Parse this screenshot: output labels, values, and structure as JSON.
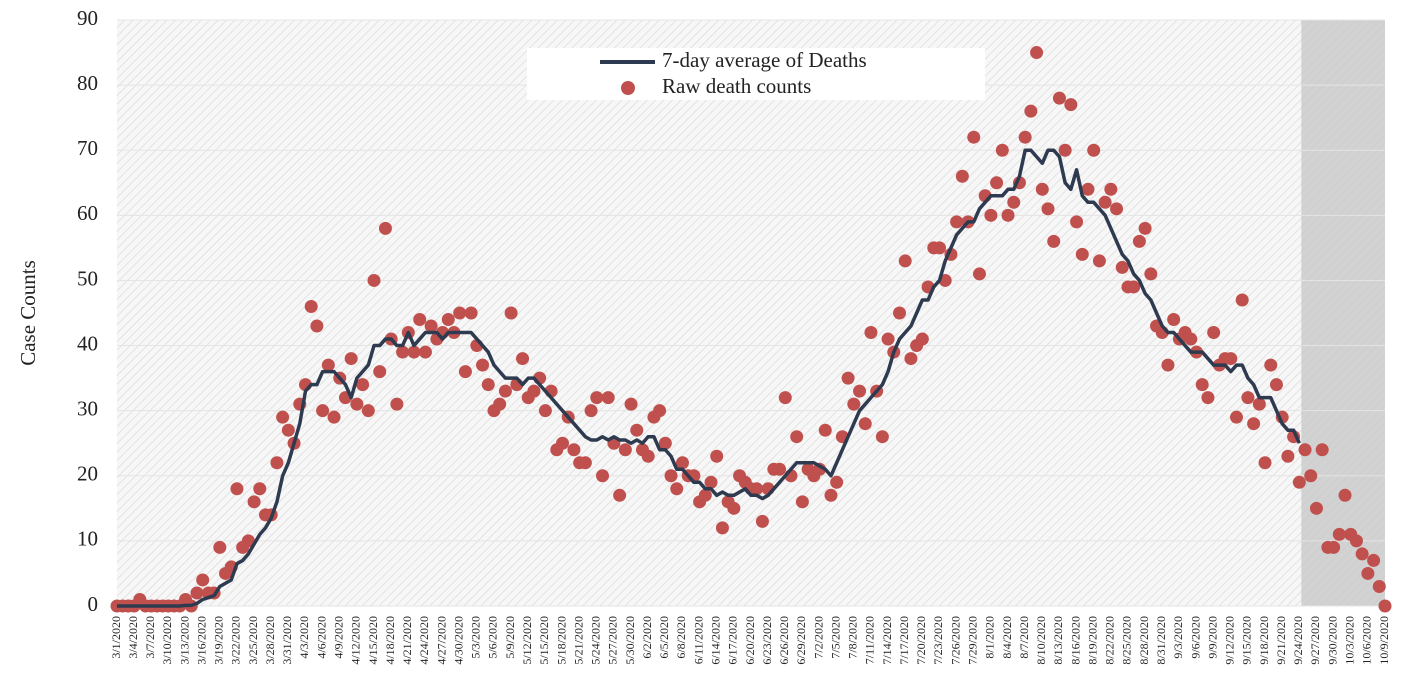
{
  "chart_data": {
    "type": "line",
    "ylabel": "Case Counts",
    "ylim": [
      0,
      90
    ],
    "yticks": [
      0,
      10,
      20,
      30,
      40,
      50,
      60,
      70,
      80,
      90
    ],
    "grid": true,
    "legend": "top",
    "categories": [
      "3/1/2020",
      null,
      null,
      "3/4/2020",
      null,
      null,
      "3/7/2020",
      null,
      null,
      "3/10/2020",
      null,
      null,
      "3/13/2020",
      null,
      null,
      "3/16/2020",
      null,
      null,
      "3/19/2020",
      null,
      null,
      "3/22/2020",
      null,
      null,
      "3/25/2020",
      null,
      null,
      "3/28/2020",
      null,
      null,
      "3/31/2020",
      null,
      null,
      "4/3/2020",
      null,
      null,
      "4/6/2020",
      null,
      null,
      "4/9/2020",
      null,
      null,
      "4/12/2020",
      null,
      null,
      "4/15/2020",
      null,
      null,
      "4/18/2020",
      null,
      null,
      "4/21/2020",
      null,
      null,
      "4/24/2020",
      null,
      null,
      "4/27/2020",
      null,
      null,
      "4/30/2020",
      null,
      null,
      "5/3/2020",
      null,
      null,
      "5/6/2020",
      null,
      null,
      "5/9/2020",
      null,
      null,
      "5/12/2020",
      null,
      null,
      "5/15/2020",
      null,
      null,
      "5/18/2020",
      null,
      null,
      "5/21/2020",
      null,
      null,
      "5/24/2020",
      null,
      null,
      "5/27/2020",
      null,
      null,
      "5/30/2020",
      null,
      null,
      "6/2/2020",
      null,
      null,
      "6/5/2020",
      null,
      null,
      "6/8/2020",
      null,
      null,
      "6/11/2020",
      null,
      null,
      "6/14/2020",
      null,
      null,
      "6/17/2020",
      null,
      null,
      "6/20/2020",
      null,
      null,
      "6/23/2020",
      null,
      null,
      "6/26/2020",
      null,
      null,
      "6/29/2020",
      null,
      null,
      "7/2/2020",
      null,
      null,
      "7/5/2020",
      null,
      null,
      "7/8/2020",
      null,
      null,
      "7/11/2020",
      null,
      null,
      "7/14/2020",
      null,
      null,
      "7/17/2020",
      null,
      null,
      "7/20/2020",
      null,
      null,
      "7/23/2020",
      null,
      null,
      "7/26/2020",
      null,
      null,
      "7/29/2020",
      null,
      null,
      "8/1/2020",
      null,
      null,
      "8/4/2020",
      null,
      null,
      "8/7/2020",
      null,
      null,
      "8/10/2020",
      null,
      null,
      "8/13/2020",
      null,
      null,
      "8/16/2020",
      null,
      null,
      "8/19/2020",
      null,
      null,
      "8/22/2020",
      null,
      null,
      "8/25/2020",
      null,
      null,
      "8/28/2020",
      null,
      null,
      "8/31/2020",
      null,
      null,
      "9/3/2020",
      null,
      null,
      "9/6/2020",
      null,
      null,
      "9/9/2020",
      null,
      null,
      "9/12/2020",
      null,
      null,
      "9/15/2020",
      null,
      null,
      "9/18/2020",
      null,
      null,
      "9/21/2020",
      null,
      null,
      "9/24/2020",
      null,
      null,
      "9/27/2020",
      null,
      null,
      "9/30/2020",
      null,
      null,
      "10/3/2020",
      null,
      null,
      "10/6/2020",
      null,
      null,
      "10/9/2020"
    ],
    "series": [
      {
        "name": "7-day average of Deaths",
        "type": "line",
        "color": "#2e3a4f",
        "values": [
          0,
          0,
          0,
          0,
          0,
          0,
          0,
          0,
          0,
          0,
          0,
          0,
          0.1,
          0.1,
          0.4,
          1,
          1.3,
          1.6,
          3,
          3.5,
          4,
          6.5,
          7,
          8,
          9.5,
          11,
          12,
          13.5,
          16,
          20,
          22,
          25,
          28,
          33,
          34,
          34,
          36,
          36,
          36,
          35,
          34,
          32,
          35,
          36,
          37,
          40,
          40,
          41,
          41,
          40,
          40,
          42,
          40,
          41,
          42,
          42,
          42,
          41,
          42,
          42,
          42,
          42,
          42,
          41,
          40,
          39,
          37,
          36,
          35,
          35,
          35,
          34,
          35,
          35,
          34,
          33,
          32,
          31,
          30,
          29,
          28,
          27,
          26,
          25.5,
          25.5,
          26,
          25.5,
          26,
          25.5,
          25.5,
          25,
          25.5,
          25,
          26,
          26,
          24,
          24,
          23,
          21,
          21,
          20,
          19,
          19,
          18,
          18,
          17,
          17.5,
          17,
          17,
          17.5,
          18,
          17,
          17,
          16.5,
          17,
          18,
          19,
          20,
          21,
          22,
          22,
          22,
          22,
          21.5,
          21,
          20,
          22,
          24,
          26,
          28,
          30,
          31,
          32,
          33,
          34,
          36,
          39,
          41,
          42,
          43,
          45,
          47,
          47,
          49,
          50,
          53,
          55,
          57,
          58,
          59,
          59,
          61,
          62,
          63,
          63,
          63,
          64,
          64,
          66,
          70,
          70,
          69,
          68,
          70,
          70,
          69,
          65,
          64,
          67,
          63,
          62,
          62,
          61,
          60,
          58,
          56,
          54,
          53,
          51,
          50,
          48,
          47,
          45,
          43,
          42,
          42,
          41,
          40,
          39,
          39,
          39,
          38,
          37,
          37,
          37,
          36,
          37,
          37,
          35,
          34,
          32,
          32,
          32,
          30,
          28,
          27,
          27,
          25,
          null,
          null,
          null,
          null,
          null,
          null,
          null,
          null,
          null,
          null,
          null,
          null,
          null,
          null,
          null
        ]
      },
      {
        "name": "Raw death counts",
        "type": "scatter",
        "color": "#c0504d",
        "values": [
          0,
          0,
          0,
          0,
          1,
          0,
          0,
          0,
          0,
          0,
          0,
          0,
          1,
          0,
          2,
          4,
          2,
          2,
          9,
          5,
          6,
          18,
          9,
          10,
          16,
          18,
          14,
          14,
          22,
          29,
          27,
          25,
          31,
          34,
          46,
          43,
          30,
          37,
          29,
          35,
          32,
          38,
          31,
          34,
          30,
          50,
          36,
          58,
          41,
          31,
          39,
          42,
          39,
          44,
          39,
          43,
          41,
          42,
          44,
          42,
          45,
          36,
          45,
          40,
          37,
          34,
          30,
          31,
          33,
          45,
          34,
          38,
          32,
          33,
          35,
          30,
          33,
          24,
          25,
          29,
          24,
          22,
          22,
          30,
          32,
          20,
          32,
          25,
          17,
          24,
          31,
          27,
          24,
          23,
          29,
          30,
          25,
          20,
          18,
          22,
          20,
          20,
          16,
          17,
          19,
          23,
          12,
          16,
          15,
          20,
          19,
          18,
          18,
          13,
          18,
          21,
          21,
          32,
          20,
          26,
          16,
          21,
          20,
          21,
          27,
          17,
          19,
          26,
          35,
          31,
          33,
          28,
          42,
          33,
          26,
          41,
          39,
          45,
          53,
          38,
          40,
          41,
          49,
          55,
          55,
          50,
          54,
          59,
          66,
          59,
          72,
          51,
          63,
          60,
          65,
          70,
          60,
          62,
          65,
          72,
          76,
          85,
          64,
          61,
          56,
          78,
          70,
          77,
          59,
          54,
          64,
          70,
          53,
          62,
          64,
          61,
          52,
          49,
          49,
          56,
          58,
          51,
          43,
          42,
          37,
          44,
          41,
          42,
          41,
          39,
          34,
          32,
          42,
          37,
          38,
          38,
          29,
          47,
          32,
          28,
          31,
          22,
          37,
          34,
          29,
          23,
          26,
          19,
          24,
          20,
          15,
          24,
          9,
          9,
          11,
          17,
          11,
          10,
          8,
          5,
          7,
          3,
          0
        ]
      }
    ]
  }
}
